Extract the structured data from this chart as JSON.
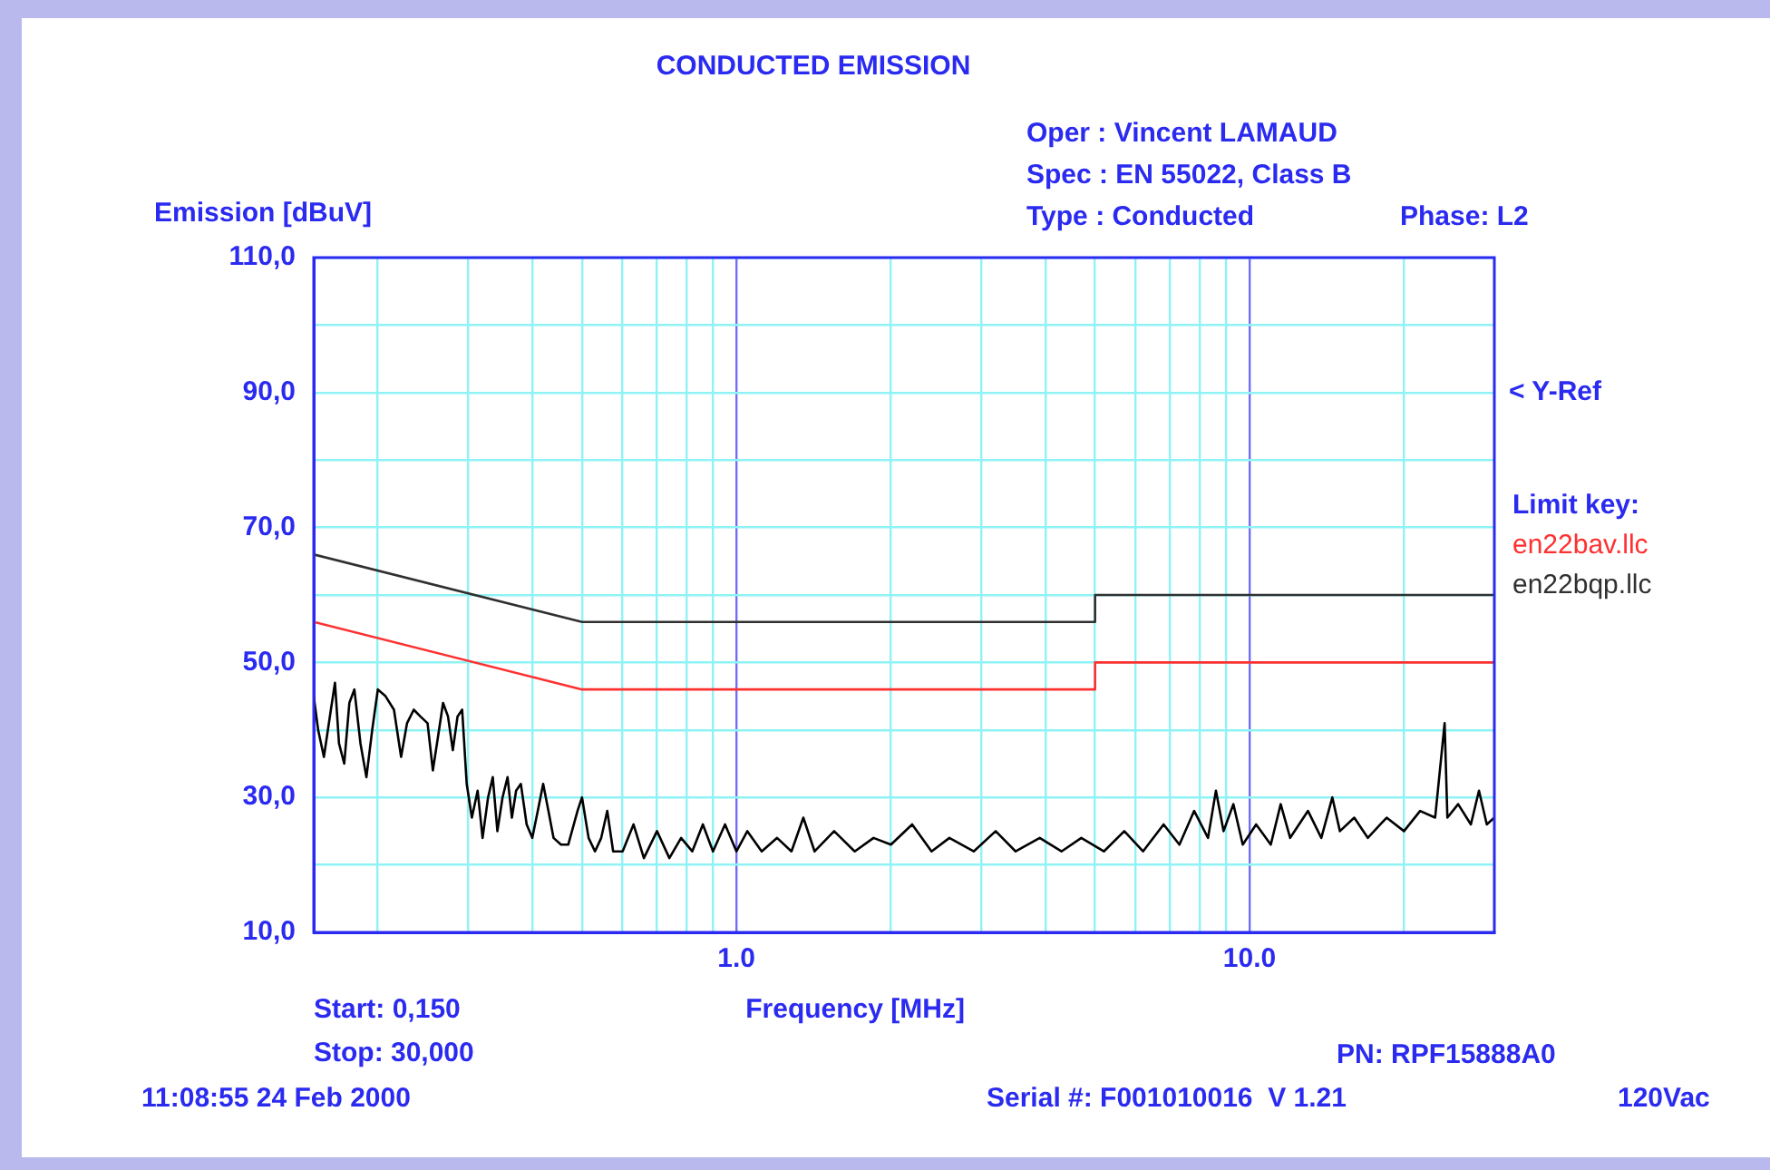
{
  "chart_data": {
    "type": "line",
    "title": "CONDUCTED EMISSION",
    "xlabel": "Frequency [MHz]",
    "ylabel": "Emission [dBuV]",
    "legend_title": "Limit key:",
    "legend": "right",
    "log": "x",
    "grid": true,
    "marker": "none",
    "line_style": "solid",
    "xlim": [
      0.15,
      30
    ],
    "ylim": [
      10,
      110
    ],
    "xticks": [
      {
        "value": 0.2,
        "label": null
      },
      {
        "value": 0.3,
        "label": null
      },
      {
        "value": 0.4,
        "label": null
      },
      {
        "value": 0.5,
        "label": null
      },
      {
        "value": 0.6,
        "label": null
      },
      {
        "value": 0.7,
        "label": null
      },
      {
        "value": 0.8,
        "label": null
      },
      {
        "value": 0.9,
        "label": null
      },
      {
        "value": 1,
        "label": "1.0"
      },
      {
        "value": 2,
        "label": null
      },
      {
        "value": 3,
        "label": null
      },
      {
        "value": 4,
        "label": null
      },
      {
        "value": 5,
        "label": null
      },
      {
        "value": 6,
        "label": null
      },
      {
        "value": 7,
        "label": null
      },
      {
        "value": 8,
        "label": null
      },
      {
        "value": 9,
        "label": null
      },
      {
        "value": 10,
        "label": "10.0"
      },
      {
        "value": 20,
        "label": null
      }
    ],
    "yticks": [
      {
        "value": 10,
        "label": "10,0"
      },
      {
        "value": 20,
        "label": null
      },
      {
        "value": 30,
        "label": "30,0"
      },
      {
        "value": 40,
        "label": null
      },
      {
        "value": 50,
        "label": "50,0"
      },
      {
        "value": 60,
        "label": null
      },
      {
        "value": 70,
        "label": "70,0"
      },
      {
        "value": 80,
        "label": null
      },
      {
        "value": 90,
        "label": "90,0"
      },
      {
        "value": 100,
        "label": null
      },
      {
        "value": 110,
        "label": "110,0"
      }
    ],
    "series": [
      {
        "name": "en22bav.llc",
        "color": "#ff3030",
        "x": [
          0.15,
          0.5,
          5,
          5,
          30
        ],
        "values": [
          56,
          46,
          46,
          50,
          50
        ]
      },
      {
        "name": "en22bqp.llc",
        "color": "#303030",
        "x": [
          0.15,
          0.5,
          5,
          5,
          30
        ],
        "values": [
          66,
          56,
          56,
          60,
          60
        ]
      },
      {
        "color": "#000000",
        "x": [
          0.15,
          0.153,
          0.157,
          0.162,
          0.165,
          0.168,
          0.172,
          0.176,
          0.18,
          0.185,
          0.19,
          0.195,
          0.2,
          0.207,
          0.215,
          0.222,
          0.228,
          0.235,
          0.242,
          0.25,
          0.256,
          0.262,
          0.268,
          0.274,
          0.28,
          0.286,
          0.292,
          0.298,
          0.305,
          0.313,
          0.32,
          0.328,
          0.335,
          0.342,
          0.35,
          0.358,
          0.365,
          0.372,
          0.38,
          0.39,
          0.4,
          0.41,
          0.42,
          0.43,
          0.44,
          0.455,
          0.47,
          0.49,
          0.5,
          0.515,
          0.53,
          0.545,
          0.56,
          0.575,
          0.6,
          0.63,
          0.66,
          0.7,
          0.74,
          0.78,
          0.82,
          0.86,
          0.9,
          0.95,
          1.0,
          1.05,
          1.12,
          1.2,
          1.28,
          1.35,
          1.42,
          1.55,
          1.7,
          1.85,
          2.0,
          2.2,
          2.4,
          2.6,
          2.9,
          3.2,
          3.5,
          3.9,
          4.3,
          4.7,
          5.2,
          5.7,
          6.2,
          6.8,
          7.3,
          7.8,
          8.3,
          8.6,
          8.9,
          9.3,
          9.7,
          10.3,
          11,
          11.5,
          12,
          13,
          13.8,
          14.5,
          15,
          16,
          17,
          18.5,
          20,
          21.5,
          23,
          24,
          24.3,
          25.5,
          27,
          28,
          29,
          30
        ],
        "values": [
          45,
          40,
          36,
          43,
          47,
          38,
          35,
          44,
          46,
          38,
          33,
          40,
          46,
          45,
          43,
          36,
          41,
          43,
          42,
          41,
          34,
          39,
          44,
          42,
          37,
          42,
          43,
          32,
          27,
          31,
          24,
          30,
          33,
          25,
          30,
          33,
          27,
          31,
          32,
          26,
          24,
          28,
          32,
          28,
          24,
          23,
          23,
          28,
          30,
          24,
          22,
          24,
          28,
          22,
          22,
          26,
          21,
          25,
          21,
          24,
          22,
          26,
          22,
          26,
          22,
          25,
          22,
          24,
          22,
          27,
          22,
          25,
          22,
          24,
          23,
          26,
          22,
          24,
          22,
          25,
          22,
          24,
          22,
          24,
          22,
          25,
          22,
          26,
          23,
          28,
          24,
          31,
          25,
          29,
          23,
          26,
          23,
          29,
          24,
          28,
          24,
          30,
          25,
          27,
          24,
          27,
          25,
          28,
          27,
          41,
          27,
          29,
          26,
          31,
          26,
          27
        ]
      }
    ],
    "annotations": [
      "Oper : Vincent LAMAUD",
      "Spec : EN 55022, Class B",
      "Type : Conducted",
      "Phase: L2",
      "< Y-Ref",
      "Start: 0,150",
      "Stop: 30,000",
      "11:08:55 24 Feb 2000",
      "PN: RPF15888A0",
      "Serial #: F001010016  V 1.21",
      "120Vac"
    ]
  }
}
